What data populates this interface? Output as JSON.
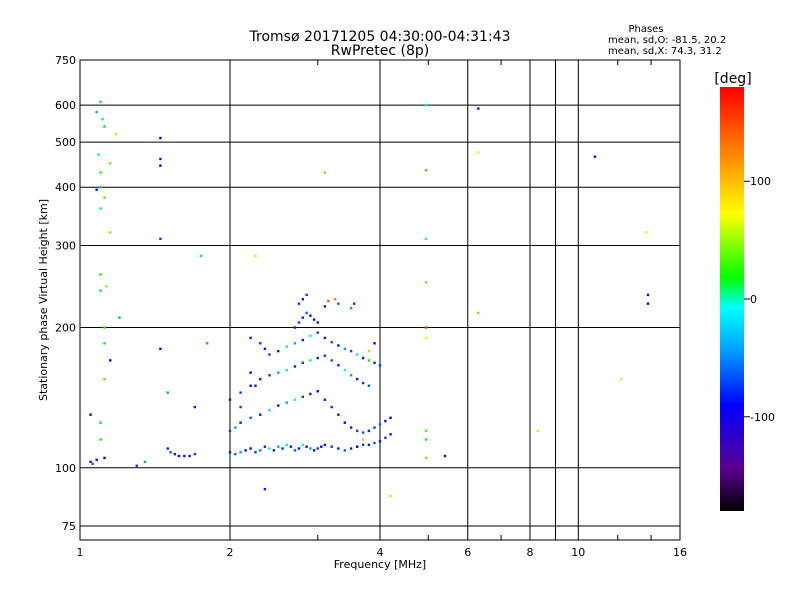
{
  "chart_data": {
    "type": "scatter",
    "title": "Tromsø 20171205 04:30:00-04:31:43",
    "subtitle": "RwPretec (8p)",
    "xlabel": "Frequency [MHz]",
    "ylabel": "Stationary phase Virtual Height [km]",
    "x_scale": "log",
    "y_scale": "log",
    "xlim": [
      1,
      16
    ],
    "ylim": [
      70,
      750
    ],
    "x_ticks": [
      1,
      2,
      4,
      6,
      8,
      10,
      16
    ],
    "y_ticks": [
      75,
      100,
      200,
      300,
      400,
      500,
      600,
      750
    ],
    "grid": true,
    "stats": {
      "heading": "Phases",
      "line1": "mean, sd,O: -81.5, 20.2",
      "line2": "mean, sd,X:  74.3, 31.2"
    },
    "colorbar": {
      "label": "[deg]",
      "min": -180,
      "max": 180,
      "ticks": [
        -100,
        0,
        100
      ],
      "tick_labels": [
        "-100",
        "0",
        "100"
      ]
    },
    "points": [
      [
        1.05,
        103,
        -100
      ],
      [
        1.06,
        102,
        -80
      ],
      [
        1.08,
        104,
        -100
      ],
      [
        1.12,
        105,
        -110
      ],
      [
        1.3,
        101,
        -90
      ],
      [
        1.35,
        103,
        -60
      ],
      [
        1.5,
        110,
        -100
      ],
      [
        1.52,
        108,
        -80
      ],
      [
        1.55,
        107,
        -100
      ],
      [
        1.58,
        106,
        -110
      ],
      [
        1.62,
        106,
        -100
      ],
      [
        1.66,
        106,
        -120
      ],
      [
        1.7,
        107,
        -90
      ],
      [
        2.0,
        108,
        -100
      ],
      [
        2.05,
        107,
        -80
      ],
      [
        2.1,
        108,
        -60
      ],
      [
        2.15,
        109,
        -100
      ],
      [
        2.2,
        110,
        -110
      ],
      [
        2.25,
        108,
        -90
      ],
      [
        2.3,
        109,
        -70
      ],
      [
        2.35,
        111,
        -100
      ],
      [
        2.4,
        110,
        -20
      ],
      [
        2.45,
        109,
        -100
      ],
      [
        2.5,
        111,
        -60
      ],
      [
        2.55,
        110,
        -90
      ],
      [
        2.6,
        112,
        -40
      ],
      [
        2.65,
        111,
        -100
      ],
      [
        2.7,
        109,
        -80
      ],
      [
        2.75,
        110,
        -100
      ],
      [
        2.8,
        112,
        -30
      ],
      [
        2.85,
        111,
        -100
      ],
      [
        2.9,
        110,
        -60
      ],
      [
        2.95,
        109,
        -100
      ],
      [
        3.0,
        110,
        -90
      ],
      [
        3.05,
        111,
        -110
      ],
      [
        3.1,
        112,
        -100
      ],
      [
        3.2,
        111,
        -90
      ],
      [
        3.3,
        110,
        -100
      ],
      [
        3.4,
        109,
        -80
      ],
      [
        3.5,
        110,
        -100
      ],
      [
        3.6,
        111,
        -110
      ],
      [
        3.7,
        112,
        -90
      ],
      [
        3.8,
        112,
        -100
      ],
      [
        3.9,
        113,
        -80
      ],
      [
        4.0,
        114,
        -100
      ],
      [
        4.1,
        116,
        -90
      ],
      [
        4.2,
        118,
        -100
      ],
      [
        2.0,
        120,
        -90
      ],
      [
        2.05,
        122,
        -60
      ],
      [
        2.1,
        125,
        -100
      ],
      [
        2.2,
        128,
        -80
      ],
      [
        2.3,
        130,
        -100
      ],
      [
        2.4,
        133,
        -40
      ],
      [
        2.5,
        136,
        -100
      ],
      [
        2.6,
        138,
        -60
      ],
      [
        2.7,
        140,
        -30
      ],
      [
        2.8,
        142,
        -90
      ],
      [
        2.9,
        144,
        -100
      ],
      [
        3.0,
        146,
        -110
      ],
      [
        3.1,
        140,
        -100
      ],
      [
        3.2,
        135,
        -90
      ],
      [
        3.3,
        130,
        -100
      ],
      [
        3.4,
        125,
        -110
      ],
      [
        3.5,
        122,
        -100
      ],
      [
        3.6,
        120,
        -90
      ],
      [
        3.7,
        119,
        -80
      ],
      [
        3.8,
        120,
        -100
      ],
      [
        3.9,
        122,
        -90
      ],
      [
        4.0,
        124,
        -80
      ],
      [
        4.1,
        126,
        -100
      ],
      [
        4.2,
        128,
        -110
      ],
      [
        2.0,
        140,
        -100
      ],
      [
        2.1,
        145,
        -90
      ],
      [
        2.2,
        150,
        -110
      ],
      [
        2.3,
        155,
        -100
      ],
      [
        2.4,
        158,
        -90
      ],
      [
        2.5,
        160,
        -60
      ],
      [
        2.6,
        162,
        -40
      ],
      [
        2.7,
        165,
        -100
      ],
      [
        2.8,
        168,
        -90
      ],
      [
        2.9,
        170,
        -20
      ],
      [
        3.0,
        172,
        -100
      ],
      [
        3.1,
        174,
        -90
      ],
      [
        3.2,
        170,
        -80
      ],
      [
        3.3,
        166,
        -100
      ],
      [
        3.4,
        162,
        -30
      ],
      [
        3.5,
        158,
        -60
      ],
      [
        3.6,
        155,
        -100
      ],
      [
        3.7,
        152,
        -90
      ],
      [
        3.8,
        150,
        -80
      ],
      [
        2.4,
        175,
        -90
      ],
      [
        2.5,
        178,
        -100
      ],
      [
        2.6,
        182,
        -40
      ],
      [
        2.7,
        185,
        -60
      ],
      [
        2.8,
        188,
        -100
      ],
      [
        2.9,
        192,
        -30
      ],
      [
        3.0,
        195,
        -90
      ],
      [
        3.1,
        190,
        -100
      ],
      [
        3.2,
        186,
        -80
      ],
      [
        3.3,
        183,
        -100
      ],
      [
        3.4,
        180,
        -60
      ],
      [
        3.5,
        178,
        -90
      ],
      [
        3.6,
        175,
        -20
      ],
      [
        3.7,
        172,
        -100
      ],
      [
        3.8,
        170,
        40
      ],
      [
        3.9,
        168,
        -100
      ],
      [
        4.0,
        166,
        -90
      ],
      [
        2.7,
        200,
        -100
      ],
      [
        2.75,
        205,
        -90
      ],
      [
        2.8,
        210,
        -100
      ],
      [
        2.85,
        215,
        -80
      ],
      [
        2.9,
        212,
        -100
      ],
      [
        2.95,
        208,
        -110
      ],
      [
        3.0,
        205,
        -100
      ],
      [
        2.75,
        225,
        -90
      ],
      [
        2.8,
        230,
        -100
      ],
      [
        2.85,
        235,
        -90
      ],
      [
        3.1,
        222,
        -100
      ],
      [
        3.3,
        225,
        -80
      ],
      [
        3.5,
        220,
        -60
      ],
      [
        3.55,
        225,
        -90
      ],
      [
        2.2,
        190,
        -100
      ],
      [
        2.3,
        185,
        -90
      ],
      [
        2.35,
        180,
        -100
      ],
      [
        2.2,
        160,
        -110
      ],
      [
        2.25,
        150,
        -100
      ],
      [
        2.1,
        135,
        -90
      ],
      [
        1.08,
        580,
        -60
      ],
      [
        1.1,
        610,
        30
      ],
      [
        1.11,
        560,
        -20
      ],
      [
        1.12,
        540,
        20
      ],
      [
        1.09,
        470,
        -20
      ],
      [
        1.1,
        430,
        50
      ],
      [
        1.1,
        400,
        30
      ],
      [
        1.12,
        380,
        60
      ],
      [
        1.08,
        395,
        -100
      ],
      [
        1.1,
        360,
        -10
      ],
      [
        1.15,
        320,
        80
      ],
      [
        1.15,
        450,
        70
      ],
      [
        1.18,
        520,
        90
      ],
      [
        1.1,
        260,
        40
      ],
      [
        1.1,
        240,
        20
      ],
      [
        1.13,
        245,
        80
      ],
      [
        1.2,
        210,
        -60
      ],
      [
        1.12,
        200,
        40
      ],
      [
        1.12,
        185,
        30
      ],
      [
        1.15,
        170,
        -110
      ],
      [
        1.12,
        155,
        60
      ],
      [
        1.1,
        125,
        20
      ],
      [
        1.1,
        115,
        30
      ],
      [
        1.45,
        510,
        -110
      ],
      [
        1.45,
        460,
        -100
      ],
      [
        1.45,
        445,
        -110
      ],
      [
        1.45,
        310,
        -90
      ],
      [
        1.45,
        180,
        -110
      ],
      [
        1.75,
        285,
        20
      ],
      [
        1.8,
        185,
        150
      ],
      [
        2.25,
        285,
        110
      ],
      [
        3.1,
        430,
        130
      ],
      [
        3.25,
        230,
        140
      ],
      [
        3.15,
        228,
        150
      ],
      [
        4.95,
        600,
        -20
      ],
      [
        4.95,
        435,
        140
      ],
      [
        4.95,
        310,
        -30
      ],
      [
        4.95,
        250,
        130
      ],
      [
        4.95,
        200,
        160
      ],
      [
        4.95,
        190,
        110
      ],
      [
        4.95,
        120,
        60
      ],
      [
        4.95,
        115,
        20
      ],
      [
        4.95,
        105,
        70
      ],
      [
        4.2,
        87,
        90
      ],
      [
        3.7,
        115,
        120
      ],
      [
        3.8,
        178,
        120
      ],
      [
        3.9,
        185,
        -110
      ],
      [
        6.3,
        590,
        -120
      ],
      [
        6.3,
        475,
        110
      ],
      [
        6.3,
        215,
        70
      ],
      [
        8.3,
        120,
        100
      ],
      [
        10.8,
        465,
        -120
      ],
      [
        12.2,
        155,
        110
      ],
      [
        13.7,
        320,
        110
      ],
      [
        13.8,
        235,
        -120
      ],
      [
        13.8,
        225,
        -110
      ],
      [
        2.35,
        90,
        -100
      ],
      [
        5.4,
        106,
        -110
      ],
      [
        1.05,
        130,
        -120
      ],
      [
        1.5,
        145,
        -60
      ],
      [
        1.7,
        135,
        -100
      ]
    ]
  }
}
